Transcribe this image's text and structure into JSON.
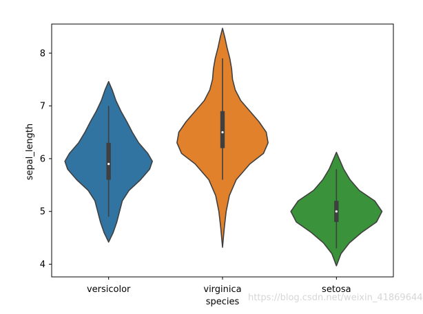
{
  "chart_data": {
    "type": "violin",
    "xlabel": "species",
    "ylabel": "sepal_length",
    "ylim": [
      3.76,
      8.55
    ],
    "yticks": [
      4,
      5,
      6,
      7,
      8
    ],
    "categories": [
      "versicolor",
      "virginica",
      "setosa"
    ],
    "colors": [
      "#3274a1",
      "#e1812c",
      "#3a923a"
    ],
    "grid": false,
    "violins": [
      {
        "name": "versicolor",
        "extent": [
          4.42,
          7.46
        ],
        "whisker": [
          4.9,
          7.0
        ],
        "q1": 5.6,
        "median": 5.9,
        "q3": 6.3,
        "profile": [
          [
            4.42,
            0.0
          ],
          [
            4.6,
            0.1
          ],
          [
            4.8,
            0.18
          ],
          [
            5.0,
            0.24
          ],
          [
            5.2,
            0.3
          ],
          [
            5.4,
            0.45
          ],
          [
            5.6,
            0.7
          ],
          [
            5.8,
            0.9
          ],
          [
            5.95,
            0.96
          ],
          [
            6.1,
            0.86
          ],
          [
            6.3,
            0.66
          ],
          [
            6.5,
            0.52
          ],
          [
            6.7,
            0.4
          ],
          [
            6.9,
            0.27
          ],
          [
            7.1,
            0.16
          ],
          [
            7.3,
            0.08
          ],
          [
            7.46,
            0.0
          ]
        ]
      },
      {
        "name": "virginica",
        "extent": [
          4.32,
          8.47
        ],
        "whisker": [
          5.6,
          7.9
        ],
        "q1": 6.2,
        "median": 6.5,
        "q3": 6.9,
        "profile": [
          [
            4.32,
            0.0
          ],
          [
            4.7,
            0.04
          ],
          [
            5.0,
            0.08
          ],
          [
            5.3,
            0.15
          ],
          [
            5.6,
            0.3
          ],
          [
            5.9,
            0.6
          ],
          [
            6.1,
            0.9
          ],
          [
            6.3,
            1.0
          ],
          [
            6.5,
            0.96
          ],
          [
            6.7,
            0.8
          ],
          [
            6.9,
            0.6
          ],
          [
            7.1,
            0.4
          ],
          [
            7.3,
            0.28
          ],
          [
            7.5,
            0.22
          ],
          [
            7.7,
            0.2
          ],
          [
            7.9,
            0.16
          ],
          [
            8.1,
            0.1
          ],
          [
            8.3,
            0.05
          ],
          [
            8.47,
            0.0
          ]
        ]
      },
      {
        "name": "setosa",
        "extent": [
          3.97,
          6.12
        ],
        "whisker": [
          4.3,
          5.8
        ],
        "q1": 4.8,
        "median": 5.0,
        "q3": 5.2,
        "profile": [
          [
            3.97,
            0.0
          ],
          [
            4.2,
            0.1
          ],
          [
            4.4,
            0.28
          ],
          [
            4.6,
            0.55
          ],
          [
            4.8,
            0.88
          ],
          [
            5.0,
            1.0
          ],
          [
            5.2,
            0.84
          ],
          [
            5.4,
            0.5
          ],
          [
            5.6,
            0.3
          ],
          [
            5.8,
            0.16
          ],
          [
            6.0,
            0.06
          ],
          [
            6.12,
            0.0
          ]
        ]
      }
    ]
  },
  "watermark": "https://blog.csdn.net/weixin_41869644"
}
